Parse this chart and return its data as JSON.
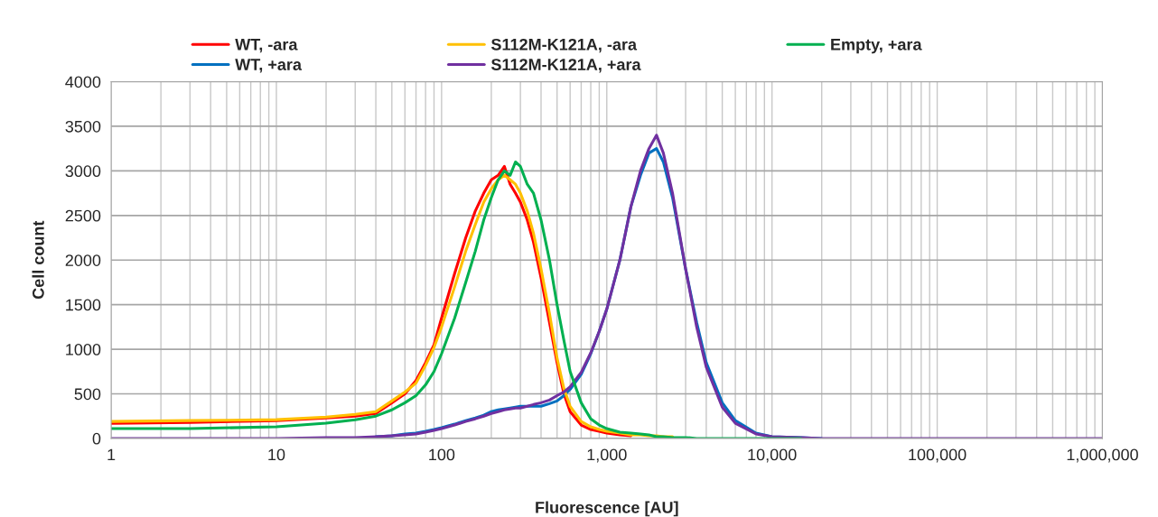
{
  "chart_data": {
    "type": "line",
    "xlabel": "Fluorescence [AU]",
    "ylabel": "Cell count",
    "log": "x",
    "grid": true,
    "legend": "top",
    "line_style": "solid",
    "marker": "none",
    "xlim": [
      1,
      1000000
    ],
    "xticks": [
      1,
      10,
      100,
      {
        "value": 1000,
        "label": "1,000"
      },
      {
        "value": 10000,
        "label": "10,000"
      },
      {
        "value": 100000,
        "label": "100,000"
      },
      {
        "value": 1000000,
        "label": "1,000,000"
      }
    ],
    "ylim": [
      0,
      4000
    ],
    "yticks": [
      0,
      500,
      1000,
      1500,
      2000,
      2500,
      3000,
      3500,
      4000
    ],
    "x": [
      1,
      3,
      10,
      20,
      30,
      40,
      50,
      60,
      70,
      80,
      90,
      100,
      120,
      140,
      160,
      180,
      200,
      220,
      240,
      260,
      280,
      300,
      330,
      360,
      400,
      450,
      500,
      550,
      600,
      700,
      800,
      900,
      1000,
      1200,
      1400,
      1600,
      1800,
      2000,
      2200,
      2500,
      3000,
      3500,
      4000,
      5000,
      6000,
      8000,
      10000,
      15000,
      20000,
      100000,
      1000000
    ],
    "series": [
      {
        "name": "WT, -ara",
        "color": "#ff0000",
        "values": [
          170,
          180,
          200,
          230,
          250,
          280,
          400,
          500,
          650,
          850,
          1050,
          1350,
          1850,
          2250,
          2550,
          2750,
          2900,
          2950,
          3050,
          2850,
          2750,
          2650,
          2450,
          2200,
          1800,
          1300,
          850,
          500,
          300,
          150,
          100,
          80,
          60,
          40,
          30,
          null,
          null,
          null,
          null,
          null,
          null,
          null,
          null,
          null,
          null,
          null,
          null,
          null,
          null,
          null,
          null
        ]
      },
      {
        "name": "WT, +ara",
        "color": "#0070c0",
        "values": [
          null,
          null,
          null,
          null,
          null,
          20,
          30,
          50,
          60,
          80,
          100,
          120,
          160,
          200,
          230,
          260,
          300,
          320,
          330,
          340,
          350,
          360,
          360,
          360,
          360,
          390,
          420,
          480,
          550,
          720,
          950,
          1200,
          1450,
          2000,
          2600,
          2950,
          3200,
          3250,
          3100,
          2700,
          1900,
          1300,
          850,
          400,
          200,
          60,
          20,
          10,
          0,
          null,
          null
        ]
      },
      {
        "name": "S112M-K121A, -ara",
        "color": "#ffc000",
        "values": [
          190,
          200,
          210,
          240,
          270,
          300,
          420,
          520,
          620,
          820,
          1020,
          1250,
          1700,
          2100,
          2400,
          2650,
          2800,
          2900,
          2950,
          2900,
          2850,
          2750,
          2550,
          2300,
          1900,
          1400,
          900,
          560,
          360,
          190,
          130,
          100,
          80,
          60,
          40,
          40,
          30,
          30,
          20,
          20,
          null,
          null,
          null,
          null,
          null,
          null,
          null,
          null,
          null,
          null,
          null
        ]
      },
      {
        "name": "S112M-K121A, +ara",
        "color": "#7030a0",
        "values": [
          0,
          0,
          0,
          10,
          10,
          20,
          30,
          40,
          50,
          70,
          90,
          110,
          150,
          190,
          220,
          250,
          280,
          300,
          320,
          330,
          340,
          340,
          360,
          380,
          400,
          430,
          480,
          520,
          580,
          740,
          960,
          1200,
          1450,
          2000,
          2600,
          3000,
          3250,
          3400,
          3200,
          2750,
          1900,
          1250,
          800,
          350,
          170,
          50,
          20,
          10,
          0,
          0,
          0
        ]
      },
      {
        "name": "Empty, +ara",
        "color": "#00b050",
        "values": [
          110,
          110,
          130,
          170,
          210,
          250,
          320,
          400,
          480,
          600,
          750,
          950,
          1350,
          1750,
          2100,
          2450,
          2700,
          2900,
          3000,
          2950,
          3100,
          3050,
          2850,
          2750,
          2450,
          2000,
          1500,
          1100,
          750,
          400,
          220,
          150,
          110,
          70,
          60,
          50,
          40,
          20,
          20,
          10,
          10,
          0,
          0,
          0,
          0,
          0,
          0,
          0,
          null,
          null,
          null
        ]
      }
    ]
  }
}
